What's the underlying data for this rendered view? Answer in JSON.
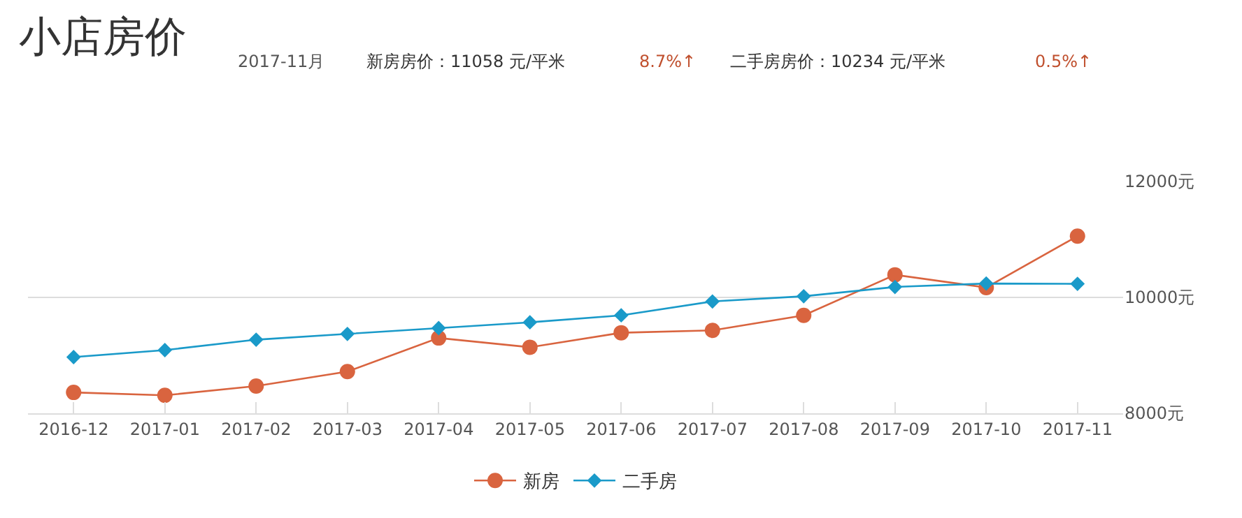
{
  "chart_data": {
    "type": "line",
    "title": "小店房价",
    "annotations": [
      "2017-11月",
      "新房房价：11058 元/平米",
      "8.7%↑",
      "二手房房价：10234 元/平米",
      "0.5%↑"
    ],
    "categories": [
      "2016-12",
      "2017-01",
      "2017-02",
      "2017-03",
      "2017-04",
      "2017-05",
      "2017-06",
      "2017-07",
      "2017-08",
      "2017-09",
      "2017-10",
      "2017-11"
    ],
    "series": [
      {
        "name": "新房",
        "color": "#d9643f",
        "marker": "circle",
        "values": [
          8360,
          8310,
          8470,
          8720,
          9300,
          9140,
          9390,
          9430,
          9690,
          10390,
          10170,
          11058
        ]
      },
      {
        "name": "二手房",
        "color": "#1a9ac9",
        "marker": "diamond",
        "values": [
          8970,
          9090,
          9270,
          9370,
          9470,
          9570,
          9690,
          9930,
          10020,
          10180,
          10240,
          10234
        ]
      }
    ],
    "ylim": [
      8000,
      12000
    ],
    "yticks": [
      {
        "value": 8000,
        "label": "8000元"
      },
      {
        "value": 10000,
        "label": "10000元"
      },
      {
        "value": 12000,
        "label": "12000元"
      }
    ],
    "grid": "y",
    "legend": "bottom"
  }
}
